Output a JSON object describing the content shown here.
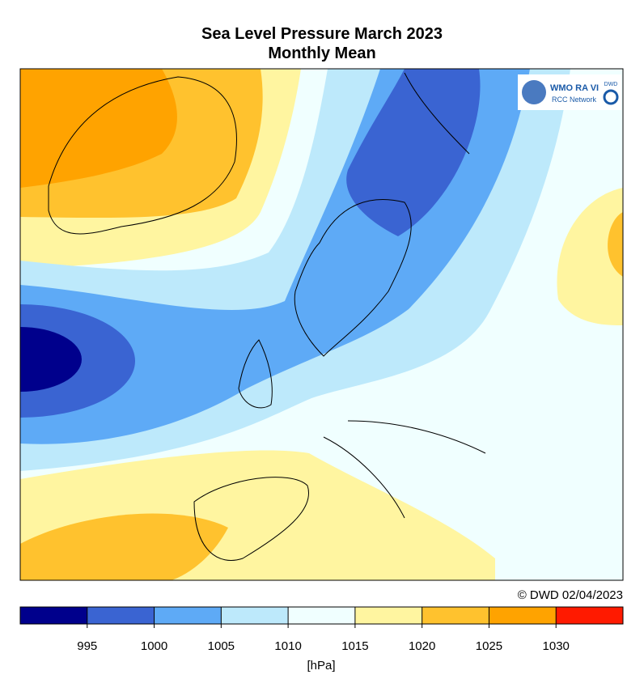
{
  "header": {
    "title": "Sea Level Pressure March 2023",
    "subtitle": "Monthly Mean"
  },
  "logo": {
    "name": "WMO RA VI",
    "network": "RCC Network",
    "agency": "DWD"
  },
  "credit": "© DWD 02/04/2023",
  "colorbar": {
    "colors": [
      "#00008c",
      "#3a64d2",
      "#5eaaf6",
      "#bde9fb",
      "#f0ffff",
      "#fff5a0",
      "#ffc22e",
      "#ffa300",
      "#ff1a00"
    ],
    "ticks": [
      995,
      1000,
      1005,
      1010,
      1015,
      1020,
      1025,
      1030
    ],
    "unit": "[hPa]"
  }
}
